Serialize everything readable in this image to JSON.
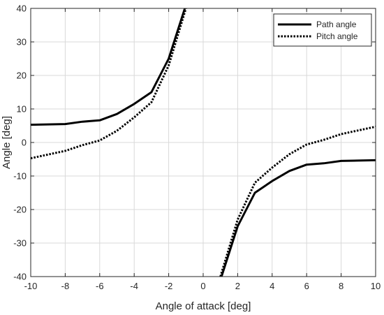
{
  "chart_data": {
    "type": "line",
    "xlabel": "Angle of attack [deg]",
    "ylabel": "Angle [deg]",
    "xlim": [
      -10,
      10
    ],
    "ylim": [
      -40,
      40
    ],
    "xticks": [
      "-10",
      "-8",
      "-6",
      "-4",
      "-2",
      "0",
      "2",
      "4",
      "6",
      "8",
      "10"
    ],
    "yticks": [
      "40",
      "30",
      "20",
      "10",
      "0",
      "-10",
      "-20",
      "-30",
      "-40"
    ],
    "grid": true,
    "legend_position": "top-right",
    "series": [
      {
        "name": "Path angle",
        "style": "solid",
        "color": "#000000",
        "segments": [
          [
            [
              -10,
              5.3
            ],
            [
              -9,
              5.4
            ],
            [
              -8,
              5.5
            ],
            [
              -7,
              6.2
            ],
            [
              -6,
              6.6
            ],
            [
              -5,
              8.5
            ],
            [
              -4,
              11.5
            ],
            [
              -3,
              15.0
            ],
            [
              -2,
              25.0
            ],
            [
              -1,
              41.0
            ]
          ],
          [
            [
              1,
              -41.0
            ],
            [
              2,
              -25.0
            ],
            [
              3,
              -15.0
            ],
            [
              4,
              -11.5
            ],
            [
              5,
              -8.5
            ],
            [
              6,
              -6.6
            ],
            [
              7,
              -6.2
            ],
            [
              8,
              -5.5
            ],
            [
              9,
              -5.4
            ],
            [
              10,
              -5.3
            ]
          ]
        ]
      },
      {
        "name": "Pitch angle",
        "style": "dotted",
        "color": "#000000",
        "segments": [
          [
            [
              -10,
              -4.7
            ],
            [
              -9,
              -3.6
            ],
            [
              -8,
              -2.5
            ],
            [
              -7,
              -0.8
            ],
            [
              -6,
              0.6
            ],
            [
              -5,
              3.5
            ],
            [
              -4,
              7.5
            ],
            [
              -3,
              12.0
            ],
            [
              -2,
              23.0
            ],
            [
              -1,
              40.0
            ]
          ],
          [
            [
              1,
              -40.0
            ],
            [
              2,
              -23.0
            ],
            [
              3,
              -12.0
            ],
            [
              4,
              -7.5
            ],
            [
              5,
              -3.5
            ],
            [
              6,
              -0.6
            ],
            [
              7,
              0.8
            ],
            [
              8,
              2.5
            ],
            [
              9,
              3.6
            ],
            [
              10,
              4.7
            ]
          ]
        ]
      }
    ]
  }
}
